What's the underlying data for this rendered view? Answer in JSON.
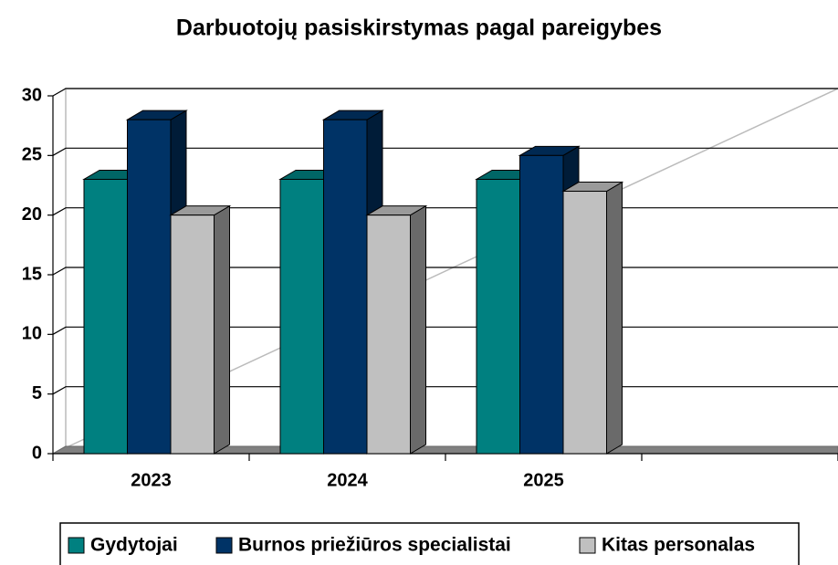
{
  "chart_data": {
    "type": "bar3d",
    "title": "Darbuotojų pasiskirstymas pagal pareigybes",
    "categories": [
      "2023",
      "2024",
      "2025",
      null
    ],
    "series": [
      {
        "name": "Gydytojai",
        "color": "#008080",
        "values": [
          23,
          23,
          23,
          null
        ]
      },
      {
        "name": "Burnos priežiūros specialistai",
        "color": "#003366",
        "values": [
          28,
          28,
          25,
          null
        ]
      },
      {
        "name": "Kitas personalas",
        "color": "#c0c0c0",
        "values": [
          20,
          20,
          22,
          null
        ]
      }
    ],
    "ylim": [
      0,
      30
    ],
    "yticks": [
      0,
      5,
      10,
      15,
      20,
      25,
      30
    ],
    "grid": true,
    "legend": "bottom"
  }
}
